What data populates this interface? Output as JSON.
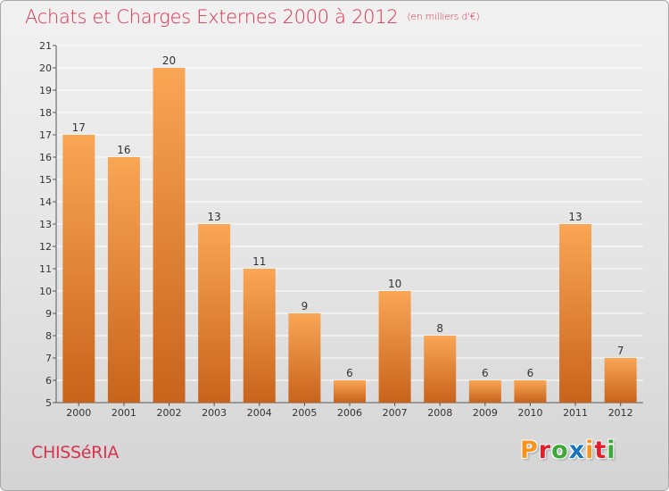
{
  "header": {
    "title": "Achats et Charges Externes 2000 à 2012",
    "unit": "(en milliers d'€)"
  },
  "footer": {
    "commune": "CHISSéRIA",
    "logo_text": "Proxiti",
    "logo_colors": [
      "#f7941d",
      "#e21d2c",
      "#3aa935",
      "#1b75bc",
      "#f7941d",
      "#e21d2c",
      "#3aa935"
    ]
  },
  "chart_data": {
    "type": "bar",
    "title": "Achats et Charges Externes 2000 à 2012",
    "subtitle": "(en milliers d'€)",
    "xlabel": "",
    "ylabel": "",
    "categories": [
      "2000",
      "2001",
      "2002",
      "2003",
      "2004",
      "2005",
      "2006",
      "2007",
      "2008",
      "2009",
      "2010",
      "2011",
      "2012"
    ],
    "values": [
      17,
      16,
      20,
      13,
      11,
      9,
      6,
      10,
      8,
      6,
      6,
      13,
      7
    ],
    "ylim": [
      5,
      21
    ],
    "yticks": [
      5,
      6,
      7,
      8,
      9,
      10,
      11,
      12,
      13,
      14,
      15,
      16,
      17,
      18,
      19,
      20,
      21
    ],
    "grid": true,
    "legend": "none",
    "bar_color_top": "#f9a655",
    "bar_color_bottom": "#c8631b"
  }
}
